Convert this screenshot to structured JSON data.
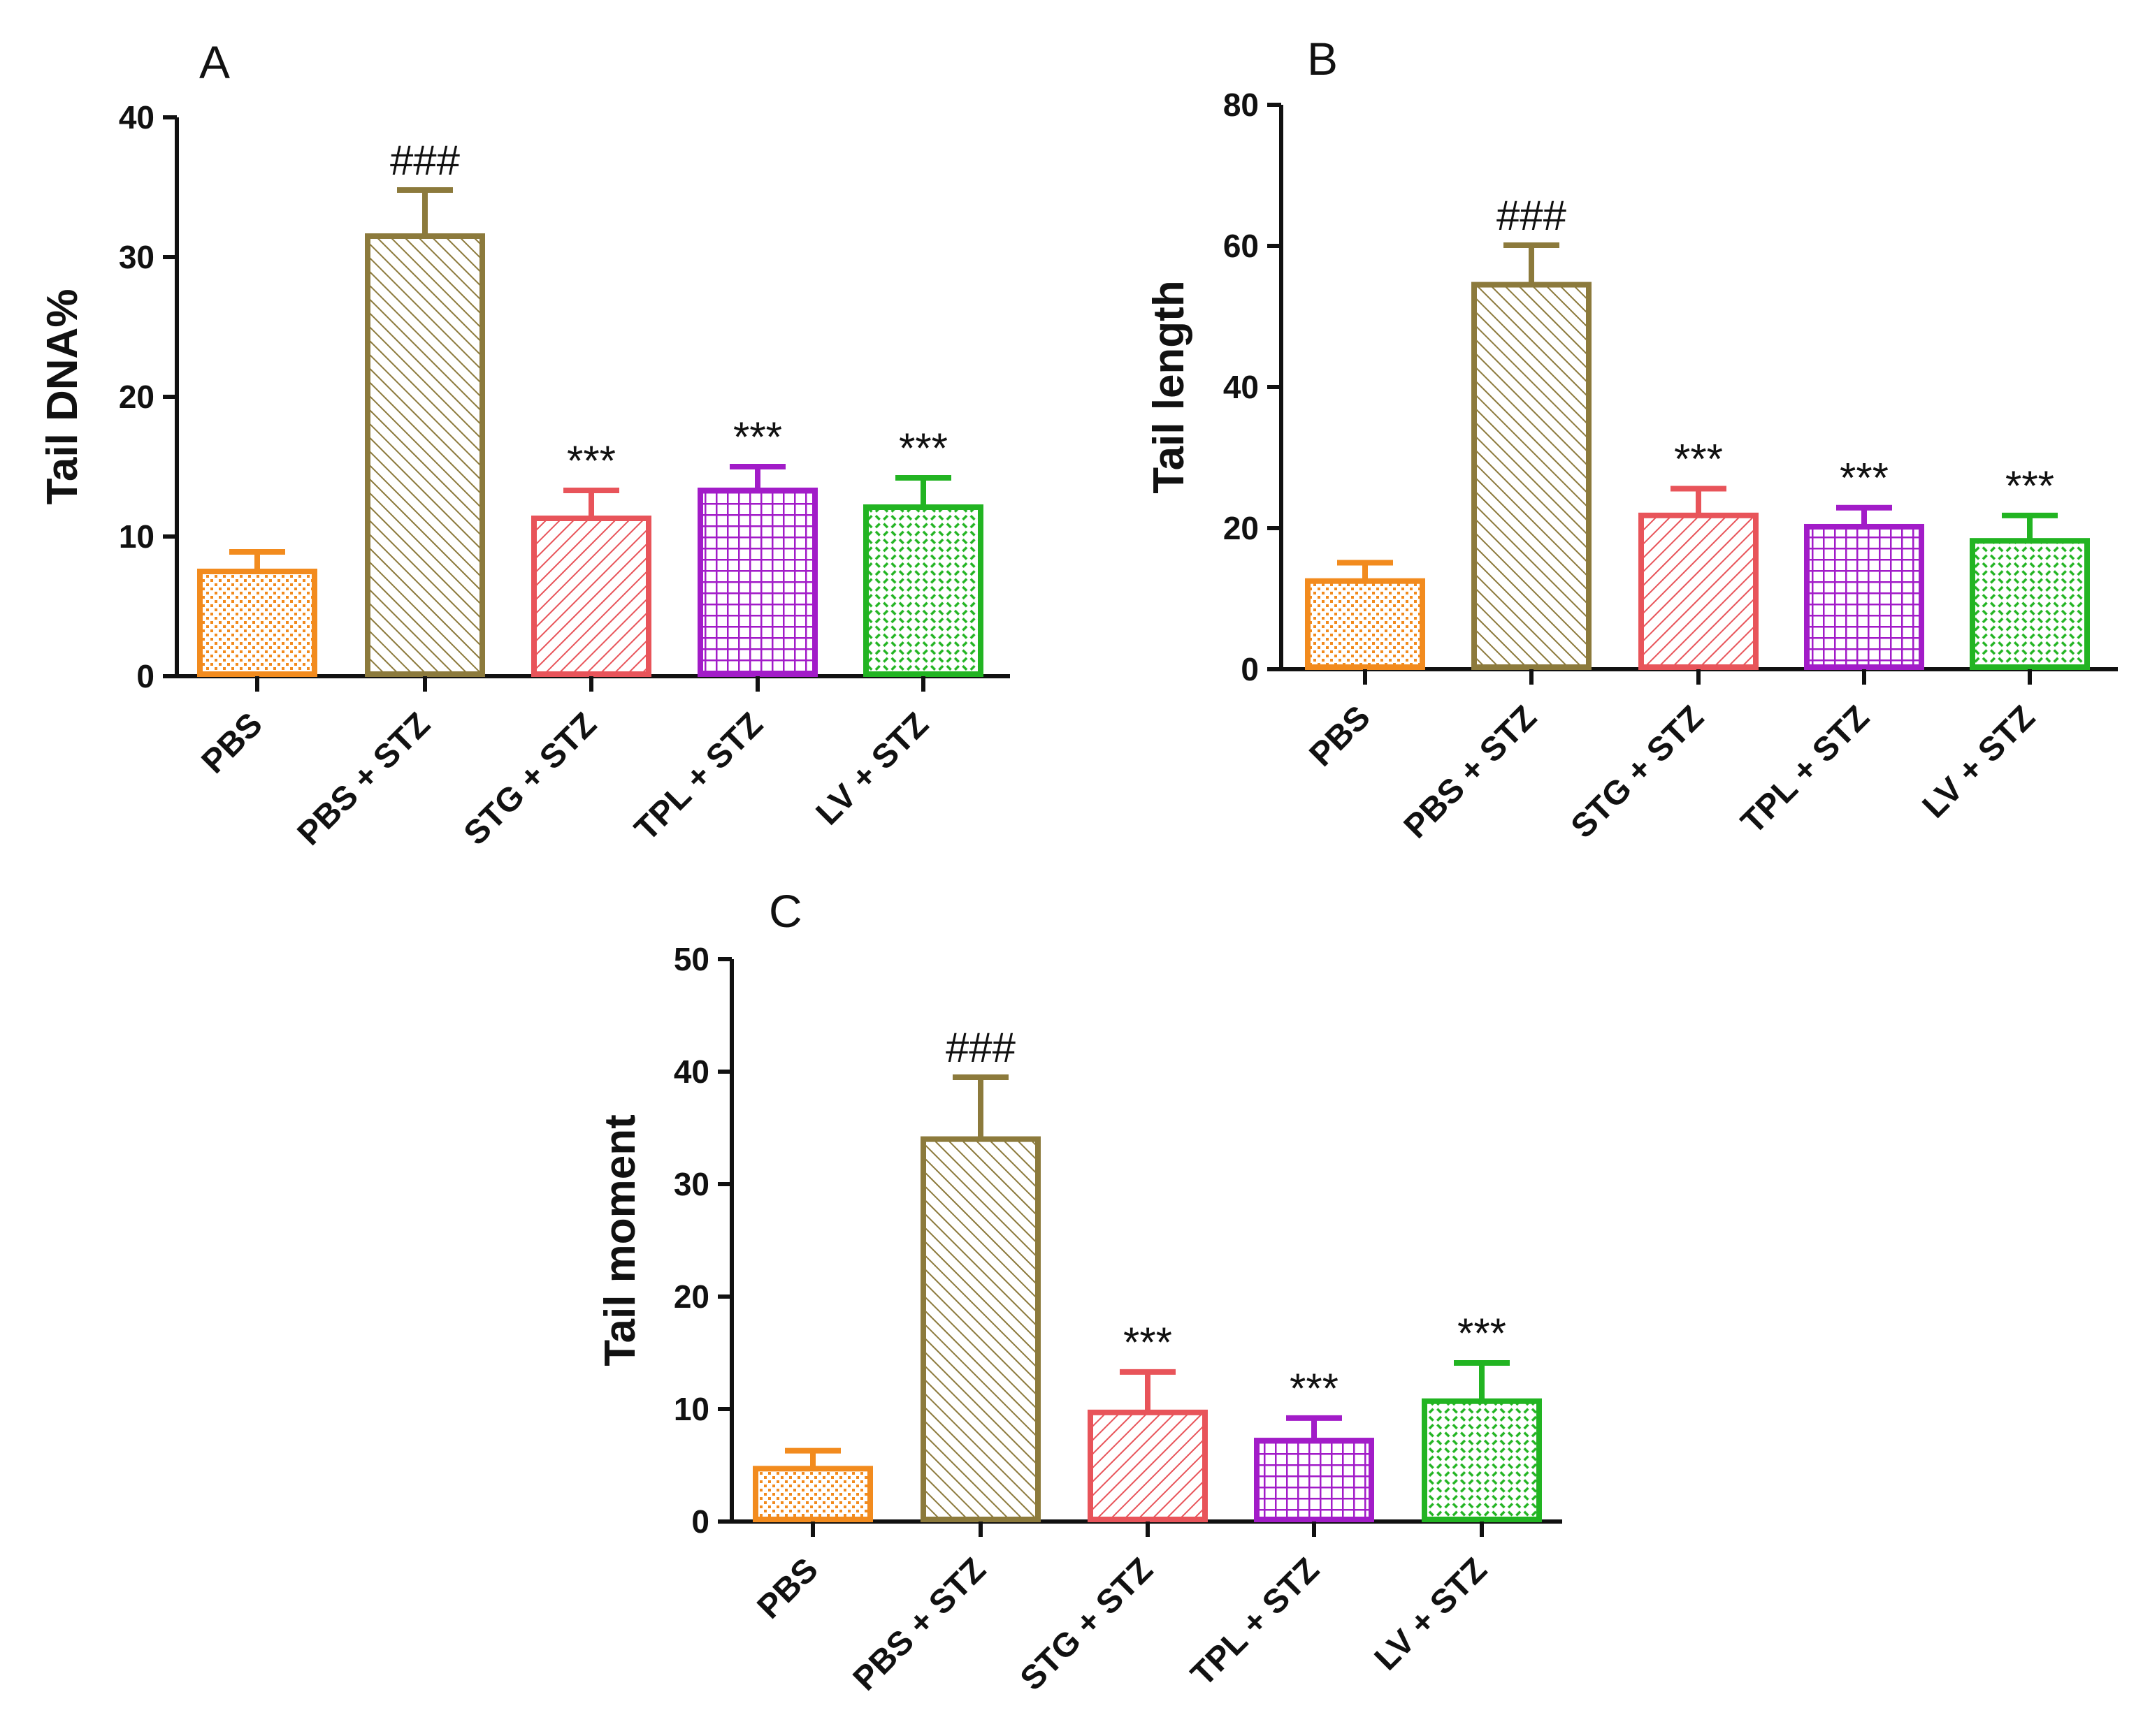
{
  "colors": {
    "PBS": "#F28B1E",
    "PBS + STZ": "#8C7A3C",
    "STG + STZ": "#E8545A",
    "TPL + STZ": "#A21CC8",
    "LV + STZ": "#22B422",
    "axis": "#111111"
  },
  "chart_data": [
    {
      "type": "bar",
      "panel": "A",
      "ylabel": "Tail DNA%",
      "xlabel": "",
      "categories": [
        "PBS",
        "PBS + STZ",
        "STG + STZ",
        "TPL + STZ",
        "LV + STZ"
      ],
      "values": [
        7.5,
        31.5,
        11.3,
        13.3,
        12.1
      ],
      "errors": [
        1.4,
        3.3,
        2.0,
        1.7,
        2.1
      ],
      "annotations": [
        "",
        "###",
        "***",
        "***",
        "***"
      ],
      "ylim": [
        0,
        40
      ],
      "yticks": [
        0,
        10,
        20,
        30,
        40
      ]
    },
    {
      "type": "bar",
      "panel": "B",
      "ylabel": "Tail length",
      "xlabel": "",
      "categories": [
        "PBS",
        "PBS + STZ",
        "STG + STZ",
        "TPL + STZ",
        "LV + STZ"
      ],
      "values": [
        12.5,
        54.5,
        21.8,
        20.2,
        18.2
      ],
      "errors": [
        2.6,
        5.6,
        3.8,
        2.7,
        3.6
      ],
      "annotations": [
        "",
        "###",
        "***",
        "***",
        "***"
      ],
      "ylim": [
        0,
        80
      ],
      "yticks": [
        0,
        20,
        40,
        60,
        80
      ]
    },
    {
      "type": "bar",
      "panel": "C",
      "ylabel": "Tail moment",
      "xlabel": "",
      "categories": [
        "PBS",
        "PBS + STZ",
        "STG + STZ",
        "TPL + STZ",
        "LV + STZ"
      ],
      "values": [
        4.7,
        34.0,
        9.7,
        7.2,
        10.7
      ],
      "errors": [
        1.6,
        5.5,
        3.6,
        2.0,
        3.4
      ],
      "annotations": [
        "",
        "###",
        "***",
        "***",
        "***"
      ],
      "ylim": [
        0,
        50
      ],
      "yticks": [
        0,
        10,
        20,
        30,
        40,
        50
      ]
    }
  ]
}
